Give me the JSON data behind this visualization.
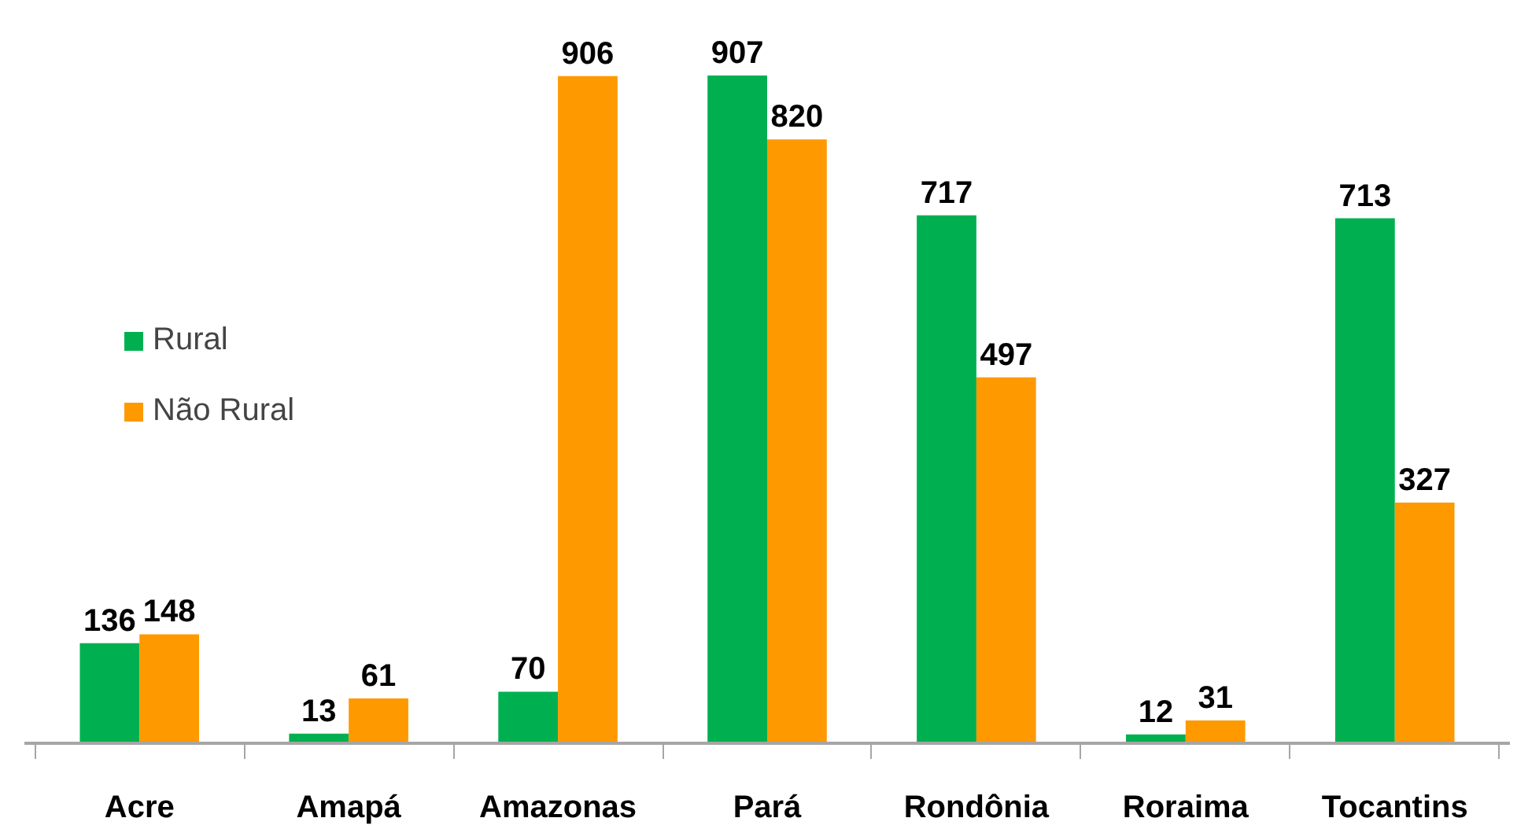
{
  "chart_data": {
    "type": "bar",
    "categories": [
      "Acre",
      "Amapá",
      "Amazonas",
      "Pará",
      "Rondônia",
      "Roraima",
      "Tocantins"
    ],
    "series": [
      {
        "name": "Rural",
        "color": "#00b050",
        "values": [
          136,
          13,
          70,
          907,
          717,
          12,
          713
        ]
      },
      {
        "name": "Não Rural",
        "color": "#ff9900",
        "values": [
          148,
          61,
          906,
          820,
          497,
          31,
          327
        ]
      }
    ],
    "data_labels": true,
    "legend": "left",
    "grid": false
  }
}
